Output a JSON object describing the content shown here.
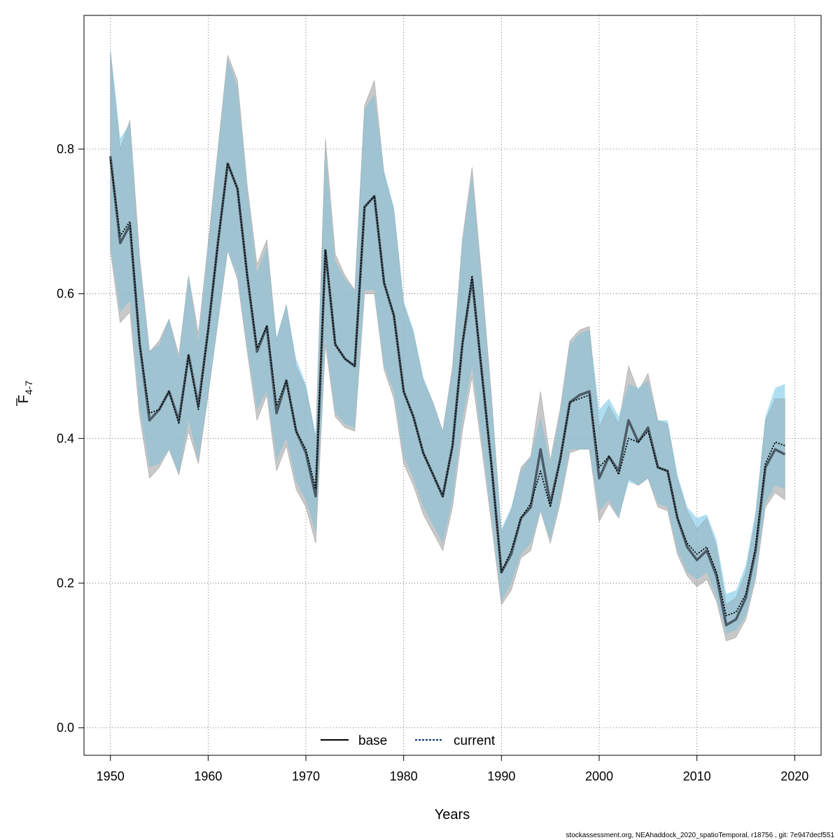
{
  "chart_data": {
    "type": "line",
    "xlabel": "Years",
    "ylabel": {
      "main": "F",
      "subscript": "4-7",
      "overbar": true
    },
    "xlim": [
      1947.3,
      2022.7
    ],
    "ylim": [
      -0.038,
      0.9848
    ],
    "x_ticks": [
      1950,
      1960,
      1970,
      1980,
      1990,
      2000,
      2010,
      2020
    ],
    "y_ticks": [
      0.0,
      0.2,
      0.4,
      0.6,
      0.8
    ],
    "y_tick_labels": [
      "0.0",
      "0.2",
      "0.4",
      "0.6",
      "0.8"
    ],
    "grid": true,
    "legend_position": "bottom-center",
    "colors": {
      "base_band": "#9a9a9a",
      "current_band": "#87ceeb",
      "base_line": "#000000",
      "current_line": "#00306b"
    },
    "x": [
      1950,
      1951,
      1952,
      1953,
      1954,
      1955,
      1956,
      1957,
      1958,
      1959,
      1960,
      1961,
      1962,
      1963,
      1964,
      1965,
      1966,
      1967,
      1968,
      1969,
      1970,
      1971,
      1972,
      1973,
      1974,
      1975,
      1976,
      1977,
      1978,
      1979,
      1980,
      1981,
      1982,
      1983,
      1984,
      1985,
      1986,
      1987,
      1988,
      1989,
      1990,
      1991,
      1992,
      1993,
      1994,
      1995,
      1996,
      1997,
      1998,
      1999,
      2000,
      2001,
      2002,
      2003,
      2004,
      2005,
      2006,
      2007,
      2008,
      2009,
      2010,
      2011,
      2012,
      2013,
      2014,
      2015,
      2016,
      2017,
      2018,
      2019
    ],
    "series": [
      {
        "name": "base",
        "values": [
          0.79,
          0.67,
          0.695,
          0.53,
          0.425,
          0.44,
          0.465,
          0.425,
          0.515,
          0.445,
          0.55,
          0.67,
          0.78,
          0.745,
          0.625,
          0.52,
          0.555,
          0.435,
          0.48,
          0.41,
          0.38,
          0.32,
          0.66,
          0.53,
          0.51,
          0.5,
          0.72,
          0.735,
          0.615,
          0.57,
          0.465,
          0.43,
          0.38,
          0.35,
          0.32,
          0.39,
          0.53,
          0.62,
          0.49,
          0.36,
          0.215,
          0.24,
          0.29,
          0.305,
          0.385,
          0.31,
          0.37,
          0.45,
          0.46,
          0.465,
          0.345,
          0.375,
          0.355,
          0.425,
          0.395,
          0.415,
          0.36,
          0.355,
          0.29,
          0.25,
          0.232,
          0.245,
          0.21,
          0.142,
          0.15,
          0.18,
          0.245,
          0.36,
          0.385,
          0.378
        ],
        "lower": [
          0.66,
          0.56,
          0.575,
          0.43,
          0.345,
          0.36,
          0.385,
          0.35,
          0.41,
          0.365,
          0.46,
          0.56,
          0.66,
          0.62,
          0.52,
          0.425,
          0.46,
          0.355,
          0.39,
          0.33,
          0.305,
          0.255,
          0.53,
          0.43,
          0.415,
          0.41,
          0.6,
          0.6,
          0.495,
          0.455,
          0.365,
          0.335,
          0.295,
          0.27,
          0.245,
          0.305,
          0.41,
          0.485,
          0.385,
          0.28,
          0.17,
          0.19,
          0.235,
          0.245,
          0.3,
          0.255,
          0.31,
          0.38,
          0.385,
          0.385,
          0.285,
          0.31,
          0.29,
          0.345,
          0.335,
          0.345,
          0.305,
          0.3,
          0.24,
          0.21,
          0.195,
          0.205,
          0.175,
          0.12,
          0.125,
          0.15,
          0.205,
          0.305,
          0.325,
          0.315
        ],
        "upper": [
          0.935,
          0.8,
          0.84,
          0.65,
          0.52,
          0.535,
          0.565,
          0.515,
          0.625,
          0.545,
          0.67,
          0.8,
          0.93,
          0.895,
          0.75,
          0.64,
          0.675,
          0.535,
          0.585,
          0.5,
          0.47,
          0.4,
          0.815,
          0.655,
          0.625,
          0.605,
          0.86,
          0.895,
          0.765,
          0.715,
          0.585,
          0.545,
          0.48,
          0.45,
          0.41,
          0.5,
          0.675,
          0.775,
          0.62,
          0.455,
          0.27,
          0.3,
          0.36,
          0.375,
          0.465,
          0.37,
          0.44,
          0.535,
          0.55,
          0.555,
          0.415,
          0.445,
          0.42,
          0.5,
          0.465,
          0.49,
          0.425,
          0.42,
          0.345,
          0.3,
          0.275,
          0.29,
          0.25,
          0.17,
          0.18,
          0.215,
          0.29,
          0.425,
          0.455,
          0.455
        ]
      },
      {
        "name": "current",
        "values": [
          0.785,
          0.68,
          0.7,
          0.53,
          0.435,
          0.44,
          0.465,
          0.42,
          0.515,
          0.44,
          0.55,
          0.67,
          0.78,
          0.745,
          0.625,
          0.525,
          0.555,
          0.445,
          0.48,
          0.41,
          0.385,
          0.33,
          0.66,
          0.53,
          0.51,
          0.5,
          0.72,
          0.735,
          0.615,
          0.57,
          0.465,
          0.43,
          0.38,
          0.35,
          0.32,
          0.39,
          0.53,
          0.625,
          0.49,
          0.36,
          0.215,
          0.245,
          0.29,
          0.31,
          0.355,
          0.305,
          0.37,
          0.45,
          0.455,
          0.46,
          0.36,
          0.375,
          0.35,
          0.4,
          0.395,
          0.41,
          0.36,
          0.355,
          0.29,
          0.255,
          0.24,
          0.25,
          0.215,
          0.155,
          0.16,
          0.185,
          0.25,
          0.365,
          0.395,
          0.39
        ],
        "lower": [
          0.665,
          0.575,
          0.59,
          0.44,
          0.36,
          0.365,
          0.385,
          0.35,
          0.425,
          0.37,
          0.46,
          0.56,
          0.66,
          0.625,
          0.525,
          0.44,
          0.465,
          0.37,
          0.4,
          0.34,
          0.315,
          0.27,
          0.54,
          0.435,
          0.42,
          0.415,
          0.605,
          0.605,
          0.5,
          0.465,
          0.375,
          0.345,
          0.305,
          0.28,
          0.255,
          0.315,
          0.425,
          0.5,
          0.395,
          0.29,
          0.175,
          0.2,
          0.24,
          0.255,
          0.3,
          0.26,
          0.315,
          0.385,
          0.385,
          0.385,
          0.3,
          0.315,
          0.29,
          0.34,
          0.335,
          0.345,
          0.31,
          0.305,
          0.245,
          0.215,
          0.205,
          0.215,
          0.18,
          0.13,
          0.135,
          0.155,
          0.21,
          0.31,
          0.335,
          0.33
        ],
        "upper": [
          0.94,
          0.815,
          0.835,
          0.645,
          0.52,
          0.53,
          0.565,
          0.51,
          0.625,
          0.535,
          0.665,
          0.795,
          0.925,
          0.885,
          0.745,
          0.63,
          0.665,
          0.54,
          0.585,
          0.51,
          0.475,
          0.405,
          0.8,
          0.645,
          0.62,
          0.605,
          0.855,
          0.875,
          0.77,
          0.72,
          0.59,
          0.55,
          0.485,
          0.45,
          0.41,
          0.495,
          0.67,
          0.765,
          0.615,
          0.455,
          0.275,
          0.305,
          0.355,
          0.375,
          0.43,
          0.365,
          0.435,
          0.53,
          0.545,
          0.55,
          0.44,
          0.455,
          0.43,
          0.475,
          0.47,
          0.48,
          0.425,
          0.425,
          0.35,
          0.305,
          0.29,
          0.295,
          0.26,
          0.185,
          0.19,
          0.225,
          0.3,
          0.43,
          0.47,
          0.475
        ]
      }
    ]
  },
  "legend": {
    "items": [
      {
        "label": "base"
      },
      {
        "label": "current"
      }
    ]
  },
  "footer": {
    "text": "stockassessment.org, NEAhaddock_2020_spatioTemporal, r18756 , git: 7e947decf551"
  }
}
